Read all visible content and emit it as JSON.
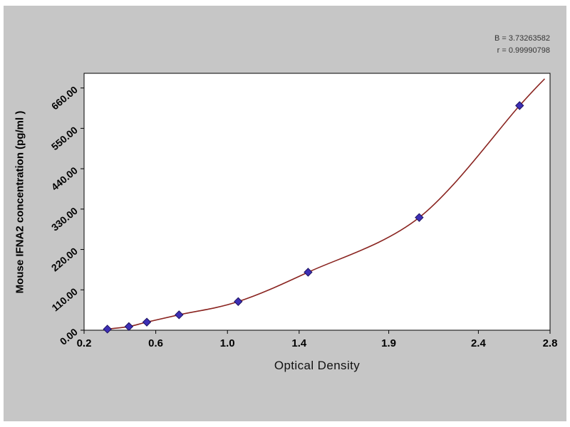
{
  "chart_data": {
    "type": "scatter",
    "title": "",
    "xlabel": "Optical Density",
    "ylabel": "Mouse IFNA2  concentration (pg/ml )",
    "legend": "none",
    "grid": false,
    "x_range": [
      0.2,
      2.8
    ],
    "y_range": [
      0,
      700
    ],
    "x_ticks": [
      {
        "value": 0.2,
        "label": "0.2"
      },
      {
        "value": 0.6,
        "label": "0.6"
      },
      {
        "value": 1.0,
        "label": "1.0"
      },
      {
        "value": 1.4,
        "label": "1.4"
      },
      {
        "value": 1.9,
        "label": "1.9"
      },
      {
        "value": 2.4,
        "label": "2.4"
      },
      {
        "value": 2.8,
        "label": "2.8"
      }
    ],
    "y_ticks": [
      {
        "value": 0,
        "label": "0.00"
      },
      {
        "value": 110,
        "label": "110.00"
      },
      {
        "value": 220,
        "label": "220.00"
      },
      {
        "value": 330,
        "label": "330.00"
      },
      {
        "value": 440,
        "label": "440.00"
      },
      {
        "value": 550,
        "label": "550.00"
      },
      {
        "value": 660,
        "label": "660.00"
      }
    ],
    "points": [
      [
        0.33,
        3
      ],
      [
        0.45,
        10
      ],
      [
        0.55,
        22
      ],
      [
        0.73,
        42
      ],
      [
        1.06,
        78
      ],
      [
        1.45,
        158
      ],
      [
        2.07,
        307
      ],
      [
        2.63,
        612
      ]
    ],
    "curve_end": [
      2.77,
      685
    ],
    "annotations": [
      "B = 3.73263582",
      "r = 0.99990798"
    ],
    "colors": {
      "panel": "#c6c6c6",
      "plot_bg": "#ffffff",
      "axis": "#000000",
      "curve": "#8a2420",
      "marker": "#3d2fb5",
      "marker_edge": "#1c1260"
    }
  }
}
